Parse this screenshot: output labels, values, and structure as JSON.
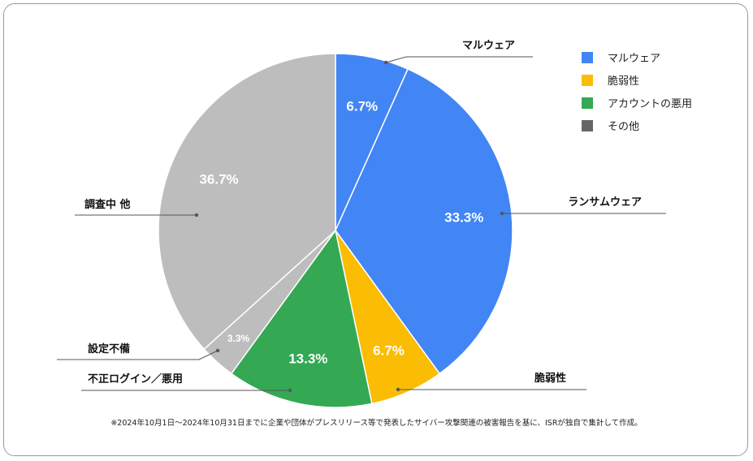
{
  "chart_data": {
    "type": "pie",
    "slices": [
      {
        "label": "マルウェア",
        "value": 6.7,
        "pct_label": "6.7%",
        "color": "#4285f4"
      },
      {
        "label": "ランサムウェア",
        "value": 33.3,
        "pct_label": "33.3%",
        "color": "#4285f4"
      },
      {
        "label": "脆弱性",
        "value": 6.7,
        "pct_label": "6.7%",
        "color": "#fbbc04"
      },
      {
        "label": "不正ログイン／悪用",
        "value": 13.3,
        "pct_label": "13.3%",
        "color": "#34a853"
      },
      {
        "label": "設定不備",
        "value": 3.3,
        "pct_label": "3.3%",
        "color": "#bdbdbd"
      },
      {
        "label": "調査中 他",
        "value": 36.7,
        "pct_label": "36.7%",
        "color": "#bdbdbd"
      }
    ],
    "legend": {
      "placement": "top-right",
      "items": [
        {
          "label": "マルウェア",
          "color": "#4285f4"
        },
        {
          "label": "脆弱性",
          "color": "#fbbc04"
        },
        {
          "label": "アカウントの悪用",
          "color": "#34a853"
        },
        {
          "label": "その他",
          "color": "#666666"
        }
      ]
    }
  },
  "footnote": "※2024年10月1日～2024年10月31日までに企業や団体がプレスリリース等で発表したサイバー攻撃関連の被害報告を基に、ISRが独自で集計して作成。"
}
